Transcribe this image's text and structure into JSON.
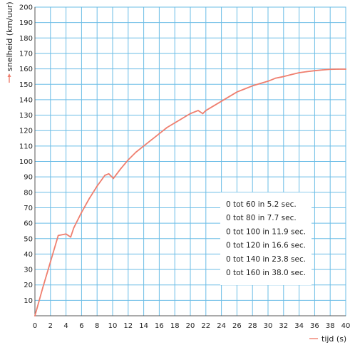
{
  "chart_data": {
    "type": "line",
    "title": "",
    "xlabel": "tijd (s)",
    "ylabel": "snelheid (km/uur)",
    "xlim": [
      0,
      40
    ],
    "ylim": [
      0,
      200
    ],
    "x_ticks": [
      0,
      2,
      4,
      6,
      8,
      10,
      12,
      14,
      16,
      18,
      20,
      22,
      24,
      26,
      28,
      30,
      32,
      34,
      36,
      38,
      40
    ],
    "y_ticks": [
      10,
      20,
      30,
      40,
      50,
      60,
      70,
      80,
      90,
      100,
      110,
      120,
      130,
      140,
      150,
      160,
      170,
      180,
      190,
      200
    ],
    "grid": true,
    "series": [
      {
        "color": "#ef7f6f",
        "x": [
          0,
          1,
          2,
          3,
          4,
          4.6,
          5,
          6,
          7,
          8,
          9,
          9.5,
          10.1,
          11,
          12,
          13,
          14,
          15,
          16,
          17,
          18,
          19,
          20,
          21,
          21.6,
          22,
          23,
          24,
          25,
          26,
          27,
          28,
          29,
          30,
          31,
          32,
          33,
          34,
          35,
          36,
          37,
          38,
          39,
          40
        ],
        "y": [
          0,
          18,
          35,
          52,
          53,
          51,
          57,
          67,
          76,
          84,
          91,
          92,
          89,
          95,
          101,
          106,
          110,
          114,
          118,
          122,
          125,
          128,
          131,
          133,
          131,
          133,
          136,
          139,
          142,
          145,
          147,
          149,
          150.5,
          152,
          154,
          155,
          156.3,
          157.5,
          158.2,
          158.8,
          159.3,
          159.7,
          159.8,
          159.8
        ]
      }
    ],
    "annotation": [
      "0 tot 60 in 5.2 sec.",
      "0 tot 80 in 7.7 sec.",
      "0 tot 100 in 11.9 sec.",
      "0 tot 120 in 16.6 sec.",
      "0 tot 140 in 23.8 sec.",
      "0 tot 160 in 38.0 sec."
    ]
  }
}
